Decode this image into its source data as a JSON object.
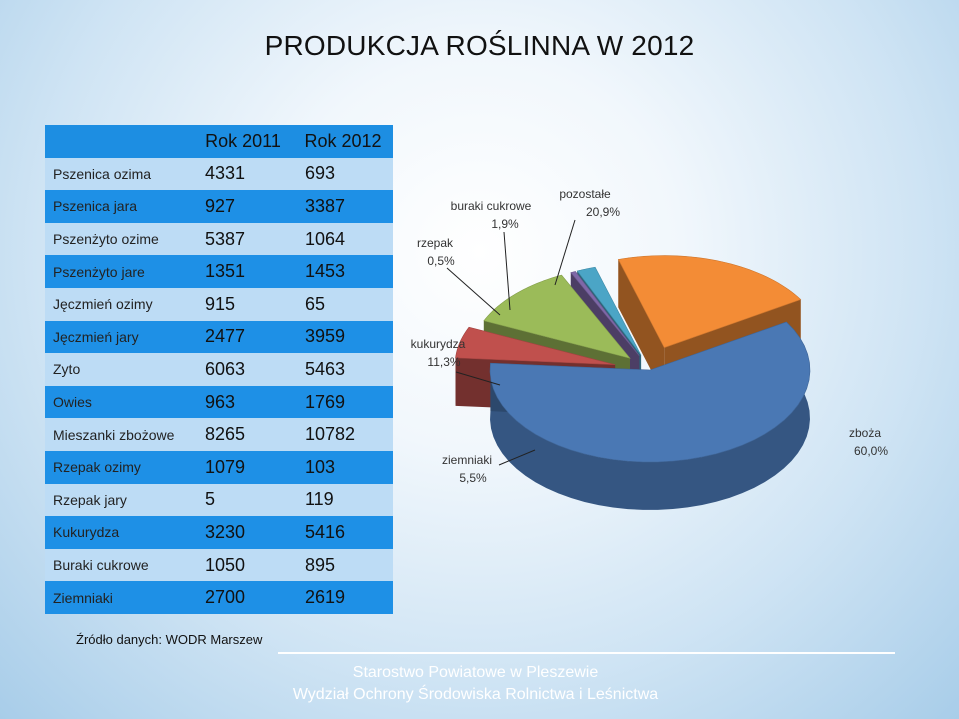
{
  "title": "PRODUKCJA ROŚLINNA W 2012",
  "table": {
    "headers": [
      "",
      "Rok 2011",
      "Rok 2012"
    ],
    "rows": [
      {
        "name": "Pszenica ozima",
        "y2011": "4331",
        "y2012": "693"
      },
      {
        "name": "Pszenica jara",
        "y2011": "927",
        "y2012": "3387"
      },
      {
        "name": "Pszenżyto ozime",
        "y2011": "5387",
        "y2012": "1064"
      },
      {
        "name": "Pszenżyto jare",
        "y2011": "1351",
        "y2012": "1453"
      },
      {
        "name": "Jęczmień ozimy",
        "y2011": "915",
        "y2012": "65"
      },
      {
        "name": "Jęczmień jary",
        "y2011": "2477",
        "y2012": "3959"
      },
      {
        "name": "Zyto",
        "y2011": "6063",
        "y2012": "5463"
      },
      {
        "name": "Owies",
        "y2011": "963",
        "y2012": "1769"
      },
      {
        "name": "Mieszanki zbożowe",
        "y2011": "8265",
        "y2012": "10782"
      },
      {
        "name": "Rzepak ozimy",
        "y2011": "1079",
        "y2012": "103"
      },
      {
        "name": "Rzepak jary",
        "y2011": "5",
        "y2012": "119"
      },
      {
        "name": "Kukurydza",
        "y2011": "3230",
        "y2012": "5416"
      },
      {
        "name": "Buraki cukrowe",
        "y2011": "1050",
        "y2012": "895"
      },
      {
        "name": "Ziemniaki",
        "y2011": "2700",
        "y2012": "2619"
      }
    ]
  },
  "source": "Źródło danych: WODR Marszew",
  "footer": {
    "line1": "Starostwo Powiatowe w Pleszewie",
    "line2": "Wydział Ochrony Środowiska Rolnictwa i Leśnictwa"
  },
  "chart_data": {
    "type": "pie",
    "slices": [
      {
        "label": "zboża",
        "value_text": "60,0%",
        "value": 60.0,
        "color": "#4a78b4"
      },
      {
        "label": "ziemniaki",
        "value_text": "5,5%",
        "value": 5.5,
        "color": "#c0504d"
      },
      {
        "label": "kukurydza",
        "value_text": "11,3%",
        "value": 11.3,
        "color": "#9bbb59"
      },
      {
        "label": "rzepak",
        "value_text": "0,5%",
        "value": 0.5,
        "color": "#7f68a8"
      },
      {
        "label": "buraki cukrowe",
        "value_text": "1,9%",
        "value": 1.9,
        "color": "#4ba5c6"
      },
      {
        "label": "pozostałe",
        "value_text": "20,9%",
        "value": 20.9,
        "color": "#f38c36"
      }
    ]
  }
}
